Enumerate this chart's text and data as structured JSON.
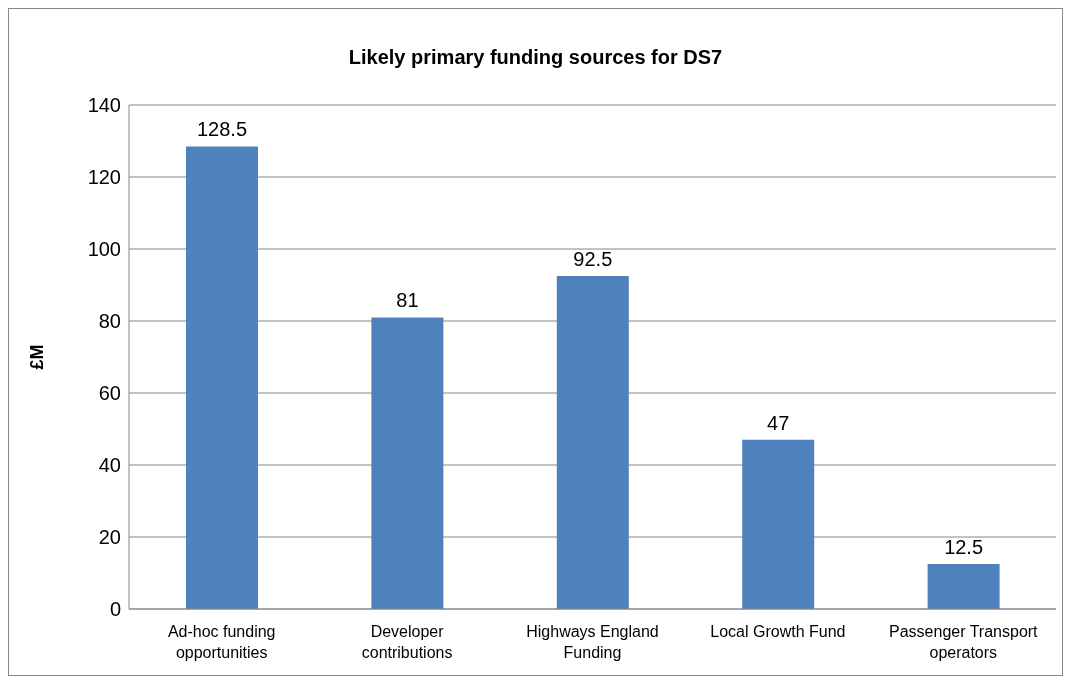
{
  "chart_data": {
    "type": "bar",
    "title": "Likely primary funding sources for DS7",
    "ylabel": "£M",
    "categories": [
      "Ad-hoc funding opportunities",
      "Developer contributions",
      "Highways England Funding",
      "Local Growth Fund",
      "Passenger Transport operators"
    ],
    "values": [
      128.5,
      81,
      92.5,
      47,
      12.5
    ],
    "color": "#4f81bd",
    "ylim": [
      0,
      140
    ],
    "yticks": [
      0,
      20,
      40,
      60,
      80,
      100,
      120,
      140
    ],
    "grid": "y",
    "data_labels": true,
    "legend": false
  }
}
